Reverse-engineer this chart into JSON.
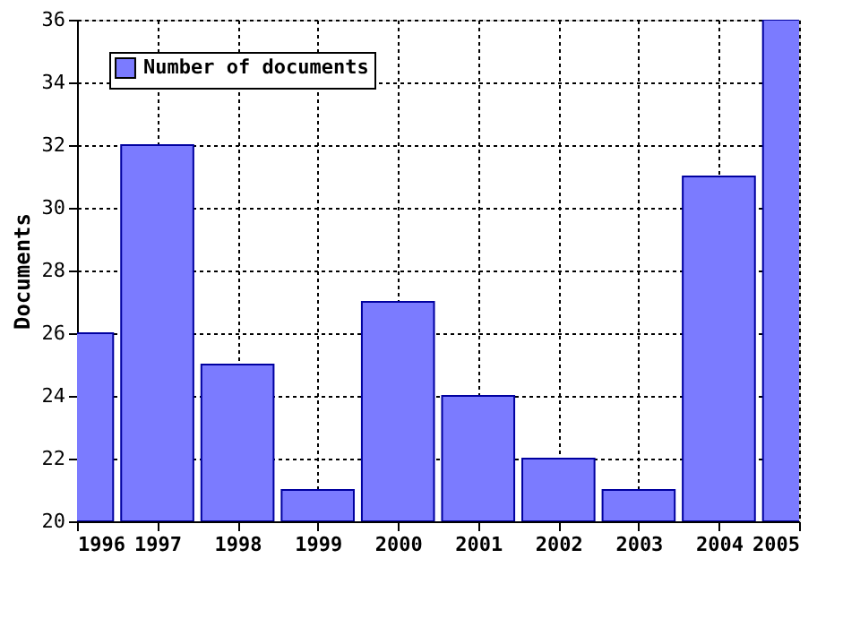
{
  "chart_data": {
    "type": "bar",
    "ylabel": "Documents",
    "x": [
      1996,
      1997,
      1998,
      1999,
      2000,
      2001,
      2002,
      2003,
      2004,
      2005
    ],
    "series": [
      {
        "name": "Number of documents",
        "color": "#7b7bff",
        "values": [
          26,
          32,
          25,
          21,
          27,
          24,
          22,
          21,
          31,
          36
        ]
      }
    ],
    "xlim": [
      1996,
      2005
    ],
    "xticks": [
      1996,
      1997,
      1998,
      1999,
      2000,
      2001,
      2002,
      2003,
      2004,
      2005
    ],
    "ylim": [
      20,
      36
    ],
    "yticks": [
      20,
      22,
      24,
      26,
      28,
      30,
      32,
      34,
      36
    ],
    "grid": true,
    "legend": "top left"
  }
}
